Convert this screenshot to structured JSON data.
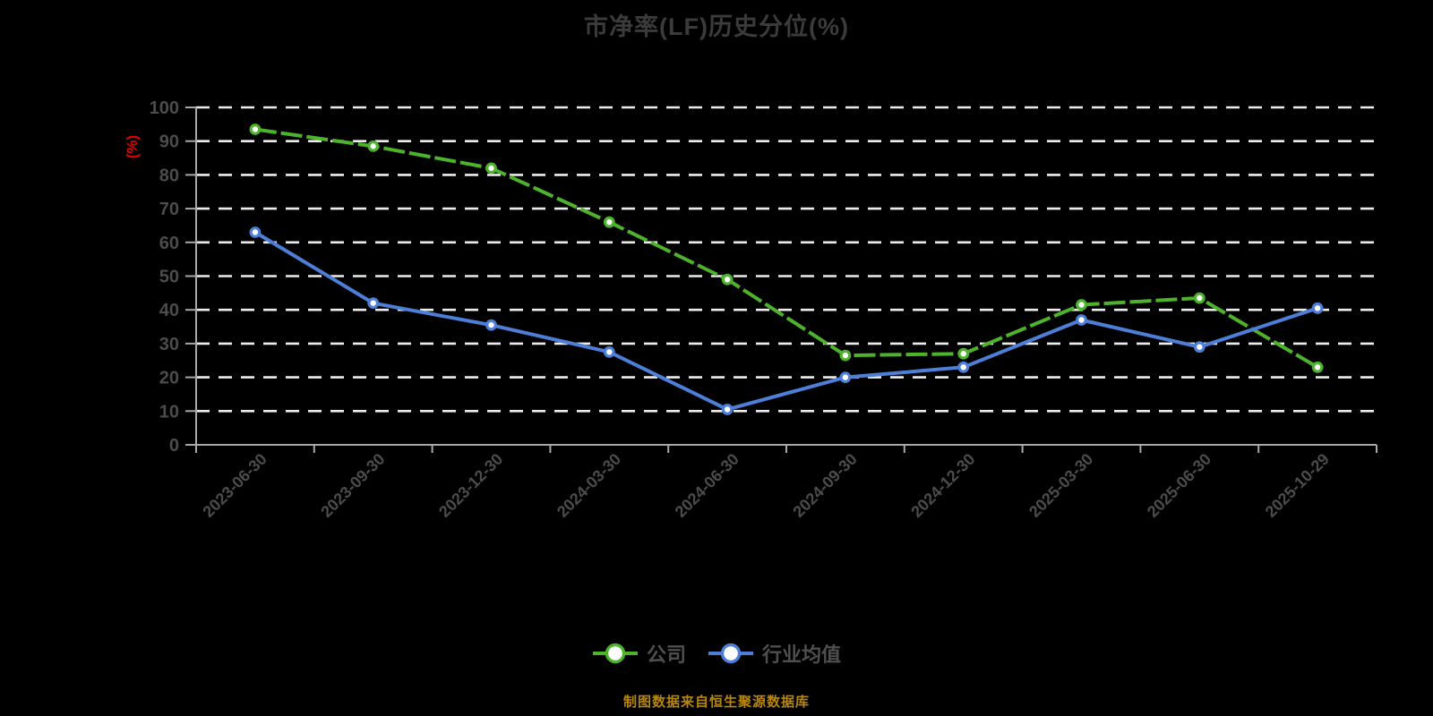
{
  "title": "市净率(LF)历史分位(%)",
  "footer": "制图数据来自恒生聚源数据库",
  "theme": {
    "background": "#000000",
    "title_color": "#3b3b3b",
    "axis_color": "#a8a8a8",
    "tick_label_color": "#4c4c4c",
    "grid_color": "#ededed",
    "ylabel_color": "#e00000",
    "legend_text_color": "#4f4f4f",
    "footer_color": "#b8860b",
    "marker_fill": "#ffffff"
  },
  "chart_data": {
    "type": "line",
    "title": "市净率(LF)历史分位(%)",
    "xlabel": "",
    "ylabel": "(%)",
    "ylim": [
      0,
      100
    ],
    "yticks": [
      0,
      10,
      20,
      30,
      40,
      50,
      60,
      70,
      80,
      90,
      100
    ],
    "grid": true,
    "grid_style": "dashed",
    "legend_position": "bottom",
    "categories": [
      "2023-06-30",
      "2023-09-30",
      "2023-12-30",
      "2024-03-30",
      "2024-06-30",
      "2024-09-30",
      "2024-12-30",
      "2025-03-30",
      "2025-06-30",
      "2025-10-29"
    ],
    "series": [
      {
        "name": "公司",
        "color": "#4db32d",
        "line_style": "dashed",
        "values": [
          93.5,
          88.5,
          82,
          66,
          49,
          26.5,
          27,
          41.5,
          43.5,
          23
        ]
      },
      {
        "name": "行业均值",
        "color": "#4d7fd8",
        "line_style": "solid",
        "values": [
          63,
          42,
          35.5,
          27.5,
          10.5,
          20,
          23,
          37,
          29,
          40.5
        ]
      }
    ]
  }
}
